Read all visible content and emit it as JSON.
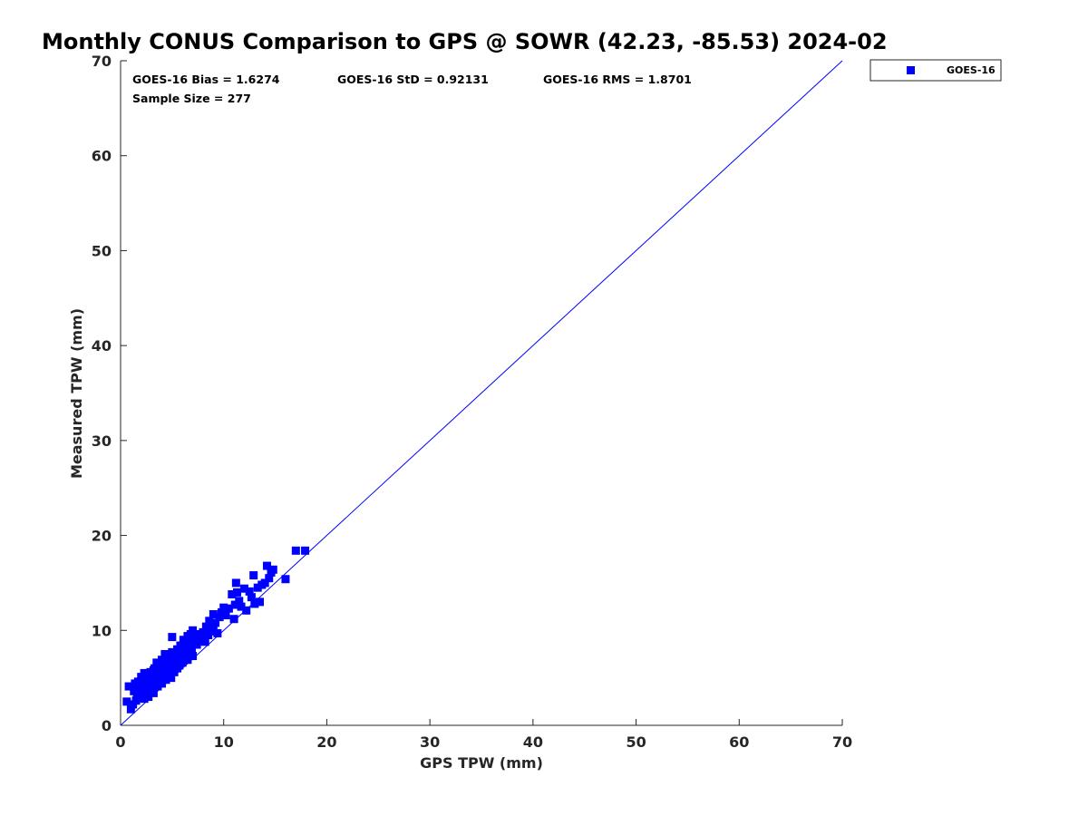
{
  "chart_data": {
    "type": "scatter",
    "title": "Monthly CONUS Comparison to GPS @ SOWR (42.23, -85.53) 2024-02",
    "xlabel": "GPS TPW (mm)",
    "ylabel": "Measured TPW (mm)",
    "xlim": [
      0,
      70
    ],
    "ylim": [
      0,
      70
    ],
    "xticks": [
      0,
      10,
      20,
      30,
      40,
      50,
      60,
      70
    ],
    "yticks": [
      0,
      10,
      20,
      30,
      40,
      50,
      60,
      70
    ],
    "grid": false,
    "legend_position": "outside-top-right",
    "reference_line": {
      "x": [
        0,
        70
      ],
      "y": [
        0,
        70
      ],
      "color": "#0000ff"
    },
    "stats": {
      "bias": "GOES-16 Bias = 1.6274",
      "std": "GOES-16 StD = 0.92131",
      "rms": "GOES-16 RMS = 1.8701",
      "sample": "Sample Size = 277"
    },
    "series": [
      {
        "name": "GOES-16",
        "color": "#0000ff",
        "marker": "square",
        "points": [
          [
            0.6,
            2.5
          ],
          [
            1.0,
            1.7
          ],
          [
            0.8,
            4.1
          ],
          [
            1.2,
            2.2
          ],
          [
            1.3,
            3.6
          ],
          [
            1.4,
            4.4
          ],
          [
            1.5,
            2.6
          ],
          [
            1.6,
            3.1
          ],
          [
            1.7,
            4.6
          ],
          [
            1.8,
            3.9
          ],
          [
            1.9,
            2.9
          ],
          [
            2.0,
            5.1
          ],
          [
            2.0,
            3.3
          ],
          [
            2.1,
            4.2
          ],
          [
            2.2,
            3.7
          ],
          [
            2.3,
            5.5
          ],
          [
            2.3,
            2.8
          ],
          [
            2.4,
            4.8
          ],
          [
            2.5,
            3.5
          ],
          [
            2.6,
            4.0
          ],
          [
            2.6,
            5.2
          ],
          [
            2.7,
            3.0
          ],
          [
            2.8,
            4.5
          ],
          [
            2.9,
            5.6
          ],
          [
            3.0,
            3.8
          ],
          [
            3.0,
            4.9
          ],
          [
            3.1,
            4.3
          ],
          [
            3.2,
            5.8
          ],
          [
            3.2,
            3.4
          ],
          [
            3.3,
            6.0
          ],
          [
            3.4,
            4.6
          ],
          [
            3.5,
            5.3
          ],
          [
            3.5,
            6.6
          ],
          [
            3.6,
            4.1
          ],
          [
            3.7,
            5.0
          ],
          [
            3.8,
            6.2
          ],
          [
            3.8,
            4.7
          ],
          [
            3.9,
            5.5
          ],
          [
            4.0,
            6.9
          ],
          [
            4.0,
            4.4
          ],
          [
            4.1,
            5.9
          ],
          [
            4.2,
            5.1
          ],
          [
            4.3,
            6.5
          ],
          [
            4.3,
            7.5
          ],
          [
            4.4,
            4.8
          ],
          [
            4.5,
            5.7
          ],
          [
            4.6,
            6.8
          ],
          [
            4.7,
            5.3
          ],
          [
            4.8,
            7.1
          ],
          [
            4.8,
            6.1
          ],
          [
            4.9,
            5.0
          ],
          [
            5.0,
            7.7
          ],
          [
            5.0,
            9.3
          ],
          [
            5.1,
            6.4
          ],
          [
            5.2,
            5.6
          ],
          [
            5.3,
            7.3
          ],
          [
            5.4,
            6.7
          ],
          [
            5.5,
            8.0
          ],
          [
            5.5,
            6.0
          ],
          [
            5.6,
            7.0
          ],
          [
            5.7,
            6.3
          ],
          [
            5.8,
            8.4
          ],
          [
            5.9,
            7.4
          ],
          [
            6.0,
            6.6
          ],
          [
            6.1,
            9.0
          ],
          [
            6.2,
            7.8
          ],
          [
            6.3,
            7.1
          ],
          [
            6.4,
            8.3
          ],
          [
            6.5,
            9.4
          ],
          [
            6.5,
            6.9
          ],
          [
            6.6,
            7.6
          ],
          [
            6.7,
            8.7
          ],
          [
            6.8,
            9.6
          ],
          [
            6.9,
            8.1
          ],
          [
            7.0,
            10.0
          ],
          [
            7.0,
            7.3
          ],
          [
            7.2,
            9.1
          ],
          [
            7.4,
            8.5
          ],
          [
            7.5,
            9.6
          ],
          [
            7.6,
            8.9
          ],
          [
            7.8,
            9.3
          ],
          [
            8.0,
            9.8
          ],
          [
            8.2,
            8.8
          ],
          [
            8.3,
            10.4
          ],
          [
            8.5,
            9.5
          ],
          [
            8.6,
            11.0
          ],
          [
            8.8,
            9.9
          ],
          [
            9.0,
            11.7
          ],
          [
            9.0,
            10.3
          ],
          [
            9.2,
            10.8
          ],
          [
            9.4,
            9.7
          ],
          [
            9.6,
            11.4
          ],
          [
            9.8,
            11.9
          ],
          [
            10.0,
            12.4
          ],
          [
            10.2,
            11.6
          ],
          [
            10.5,
            12.3
          ],
          [
            10.8,
            13.8
          ],
          [
            11.0,
            11.2
          ],
          [
            11.1,
            12.7
          ],
          [
            11.2,
            15.0
          ],
          [
            11.3,
            14.0
          ],
          [
            11.5,
            13.1
          ],
          [
            11.7,
            12.5
          ],
          [
            12.0,
            14.4
          ],
          [
            12.2,
            12.1
          ],
          [
            12.5,
            14.1
          ],
          [
            12.7,
            13.5
          ],
          [
            12.9,
            15.8
          ],
          [
            13.0,
            12.8
          ],
          [
            13.3,
            14.5
          ],
          [
            13.5,
            13.0
          ],
          [
            13.7,
            14.8
          ],
          [
            14.0,
            15.0
          ],
          [
            14.2,
            16.8
          ],
          [
            14.4,
            15.5
          ],
          [
            14.6,
            16.1
          ],
          [
            14.8,
            16.4
          ],
          [
            16.0,
            15.4
          ],
          [
            17.0,
            18.4
          ],
          [
            17.9,
            18.4
          ]
        ]
      }
    ]
  }
}
